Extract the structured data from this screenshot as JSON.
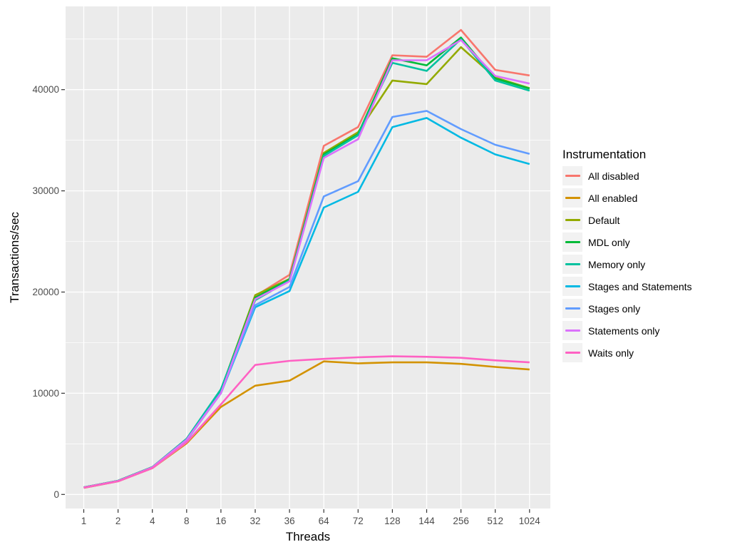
{
  "figure": {
    "background": "#FFFFFF",
    "panel_background": "#EBEBEB",
    "grid_color": "#FFFFFF",
    "tick_color": "#333333",
    "tick_label_color": "#4D4D4D",
    "legend_key_background": "#F2F2F2"
  },
  "chart_data": {
    "type": "line",
    "title": "",
    "xlabel": "Threads",
    "ylabel": "Transactions/sec",
    "legend_title": "Instrumentation",
    "legend_position": "right",
    "grid": true,
    "categories": [
      "1",
      "2",
      "4",
      "8",
      "16",
      "32",
      "36",
      "64",
      "72",
      "128",
      "144",
      "256",
      "512",
      "1024"
    ],
    "y_ticks": [
      0,
      10000,
      20000,
      30000,
      40000
    ],
    "y_tick_labels": [
      "0",
      "10000",
      "20000",
      "30000",
      "40000"
    ],
    "y_minor_ticks": [
      5000,
      15000,
      25000,
      35000,
      45000
    ],
    "ylim": [
      -1500,
      48300
    ],
    "series": [
      {
        "name": "All disabled",
        "color": "#F8766D",
        "values": [
          700,
          1350,
          2700,
          5500,
          10300,
          19600,
          21700,
          34450,
          36300,
          43400,
          43250,
          45900,
          41950,
          41400
        ]
      },
      {
        "name": "All enabled",
        "color": "#D39200",
        "values": [
          650,
          1300,
          2600,
          5050,
          8650,
          10750,
          11250,
          13150,
          12950,
          13050,
          13050,
          12900,
          12600,
          12350
        ]
      },
      {
        "name": "Default",
        "color": "#93AA00",
        "values": [
          700,
          1350,
          2700,
          5400,
          10300,
          19700,
          21300,
          33750,
          35800,
          40900,
          40550,
          44200,
          41200,
          40150
        ]
      },
      {
        "name": "MDL only",
        "color": "#00BA38",
        "values": [
          700,
          1350,
          2700,
          5450,
          10350,
          19450,
          21250,
          33600,
          35600,
          43100,
          42400,
          45150,
          41100,
          40100
        ]
      },
      {
        "name": "Memory only",
        "color": "#00C19F",
        "values": [
          700,
          1350,
          2700,
          5500,
          10400,
          19200,
          21150,
          33450,
          35500,
          42650,
          41850,
          45000,
          40900,
          39900
        ]
      },
      {
        "name": "Stages and Statements",
        "color": "#00B9E3",
        "values": [
          680,
          1320,
          2650,
          5350,
          10000,
          18500,
          20100,
          28350,
          29900,
          36300,
          37200,
          35250,
          33600,
          32650
        ]
      },
      {
        "name": "Stages only",
        "color": "#619CFF",
        "values": [
          680,
          1320,
          2650,
          5400,
          10050,
          18700,
          20500,
          29450,
          30950,
          37300,
          37900,
          36100,
          34550,
          33650
        ]
      },
      {
        "name": "Statements only",
        "color": "#DB72FB",
        "values": [
          690,
          1330,
          2680,
          5400,
          10000,
          19300,
          21050,
          33250,
          35100,
          42900,
          42900,
          44900,
          41350,
          40600
        ]
      },
      {
        "name": "Waits only",
        "color": "#FF61C3",
        "values": [
          660,
          1300,
          2600,
          5150,
          8900,
          12800,
          13200,
          13400,
          13550,
          13650,
          13600,
          13500,
          13250,
          13050
        ]
      }
    ]
  }
}
